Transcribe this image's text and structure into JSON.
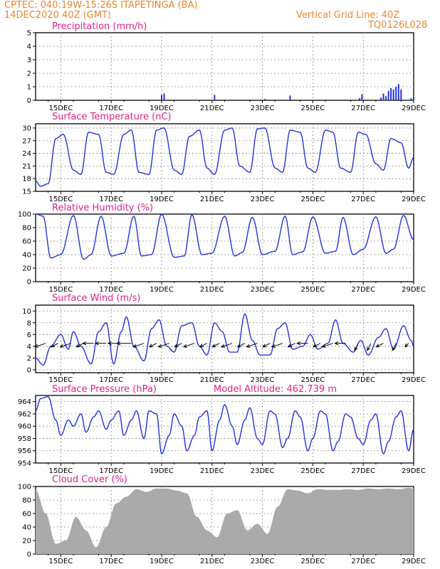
{
  "header": {
    "line1_left": "CPTEC:   040:19W-15:26S   ITAPETINGA (BA)",
    "line2_left": "14DEC2020 40Z (GMT)",
    "line2_right": "Vertical Grid Line: 40Z",
    "line3_right": "TQ0126L028"
  },
  "colors": {
    "header": "#e8862a",
    "title": "#e0208a",
    "line": "#2233dd",
    "cloud": "#aaaaaa",
    "arrow": "#000000"
  },
  "x_ticks": [
    "15DEC",
    "17DEC",
    "19DEC",
    "21DEC",
    "23DEC",
    "25DEC",
    "27DEC",
    "29DEC"
  ],
  "chart_data": [
    {
      "type": "bar",
      "title": "Precipitation (mm/h)",
      "ylim": [
        0,
        5
      ],
      "yticks": [
        0,
        1,
        2,
        3,
        4,
        5
      ],
      "x_range_days": [
        14,
        29
      ],
      "x": [
        19.0,
        19.1,
        21.1,
        23.1,
        24.1,
        26.85,
        26.95,
        27.7,
        27.8,
        27.9,
        28.0,
        28.1,
        28.2,
        28.3,
        28.4,
        28.5,
        28.9,
        29.0
      ],
      "values": [
        0.4,
        0.5,
        0.4,
        0.1,
        0.35,
        0.15,
        0.45,
        0.2,
        0.5,
        0.3,
        0.7,
        0.9,
        0.8,
        1.0,
        1.2,
        0.8,
        0.15,
        0.2
      ]
    },
    {
      "type": "line",
      "title": "Surface Temperature (nC)",
      "ylim": [
        15,
        31
      ],
      "yticks": [
        15,
        18,
        21,
        24,
        27,
        30
      ],
      "x": [
        14.0,
        14.2,
        14.5,
        14.8,
        15.1,
        15.5,
        15.8,
        16.1,
        16.5,
        16.8,
        17.1,
        17.5,
        17.8,
        18.1,
        18.5,
        18.8,
        19.1,
        19.5,
        19.8,
        20.1,
        20.5,
        20.8,
        21.1,
        21.5,
        21.8,
        22.1,
        22.5,
        22.8,
        23.1,
        23.5,
        23.8,
        24.1,
        24.5,
        24.8,
        25.1,
        25.5,
        25.8,
        26.1,
        26.5,
        26.8,
        27.1,
        27.5,
        27.8,
        28.1,
        28.5,
        28.8,
        29.0
      ],
      "values": [
        17.5,
        16.2,
        16.8,
        27.5,
        28.5,
        20.0,
        19.0,
        29.0,
        28.5,
        19.5,
        19.0,
        28.5,
        29.5,
        19.5,
        19.0,
        29.5,
        30.0,
        20.0,
        19.0,
        28.0,
        29.5,
        20.5,
        19.0,
        29.5,
        30.0,
        21.0,
        19.5,
        29.8,
        30.0,
        20.5,
        19.5,
        29.5,
        29.0,
        20.5,
        19.5,
        29.5,
        29.0,
        20.5,
        19.5,
        29.0,
        28.5,
        21.5,
        20.0,
        27.5,
        26.5,
        20.5,
        23.0
      ]
    },
    {
      "type": "line",
      "title": "Relative Humidity (%)",
      "ylim": [
        0,
        100
      ],
      "yticks": [
        0,
        20,
        40,
        60,
        80,
        100
      ],
      "x": [
        14.0,
        14.3,
        14.6,
        15.0,
        15.5,
        15.9,
        16.2,
        16.6,
        17.0,
        17.5,
        17.9,
        18.2,
        18.6,
        19.0,
        19.5,
        19.9,
        20.2,
        20.6,
        21.0,
        21.5,
        21.9,
        22.2,
        22.6,
        23.0,
        23.5,
        23.9,
        24.2,
        24.6,
        25.0,
        25.5,
        25.9,
        26.2,
        26.6,
        27.0,
        27.5,
        27.9,
        28.2,
        28.6,
        29.0
      ],
      "values": [
        100,
        97,
        35,
        40,
        98,
        33,
        40,
        97,
        38,
        42,
        97,
        38,
        40,
        100,
        36,
        38,
        99,
        40,
        42,
        97,
        38,
        43,
        95,
        40,
        45,
        97,
        40,
        44,
        96,
        42,
        45,
        95,
        40,
        48,
        96,
        42,
        48,
        98,
        62
      ]
    },
    {
      "type": "line",
      "title": "Surface Wind (m/s)",
      "ylim": [
        -0.5,
        11
      ],
      "yticks": [
        0,
        2,
        4,
        6,
        8,
        10
      ],
      "x": [
        14.0,
        14.3,
        14.6,
        15.0,
        15.3,
        15.5,
        15.8,
        16.2,
        16.5,
        16.8,
        17.1,
        17.4,
        17.6,
        17.9,
        18.3,
        18.6,
        18.9,
        19.2,
        19.5,
        19.8,
        20.2,
        20.5,
        20.8,
        21.1,
        21.4,
        21.7,
        22.0,
        22.3,
        22.6,
        22.9,
        23.3,
        23.6,
        23.9,
        24.2,
        24.6,
        24.9,
        25.2,
        25.6,
        25.9,
        26.2,
        26.6,
        26.9,
        27.2,
        27.6,
        27.9,
        28.2,
        28.6,
        28.9,
        29.0
      ],
      "values": [
        2.0,
        0.8,
        4.0,
        6.0,
        3.5,
        6.5,
        4.0,
        1.0,
        6.5,
        8.0,
        1.0,
        6.5,
        9.0,
        4.0,
        1.5,
        7.0,
        8.5,
        4.0,
        3.0,
        7.5,
        8.0,
        4.0,
        2.5,
        8.0,
        6.5,
        3.0,
        3.0,
        9.5,
        5.0,
        2.5,
        2.5,
        7.0,
        8.0,
        3.5,
        4.0,
        6.0,
        3.5,
        4.5,
        8.5,
        4.5,
        3.0,
        5.0,
        2.5,
        5.5,
        7.0,
        3.5,
        7.5,
        5.0,
        4.0
      ],
      "arrows": {
        "x": [
          14.4,
          14.9,
          15.4,
          15.9,
          16.3,
          16.8,
          17.3,
          17.8,
          18.3,
          18.8,
          19.3,
          19.8,
          20.3,
          20.8,
          21.3,
          21.8,
          22.3,
          22.8,
          23.3,
          23.8,
          24.3,
          24.8,
          25.3,
          25.8,
          26.3,
          26.8,
          27.3,
          27.8,
          28.3,
          28.8
        ],
        "u": [
          -3,
          -2,
          -3,
          -2,
          -3,
          -3,
          -3,
          -4,
          -3,
          -2,
          -3,
          -2,
          -3,
          -2,
          -2,
          -3,
          -2,
          -3,
          -2,
          -3,
          -2,
          -3,
          -2,
          -3,
          -3,
          -1,
          -1,
          -2,
          -1,
          -1
        ],
        "v": [
          -1,
          -1,
          -1,
          -1,
          0,
          0,
          0,
          0,
          -1,
          -1,
          -1,
          -1,
          -1,
          -1,
          -1,
          -1,
          -1,
          -1,
          -1,
          -1,
          -1,
          0,
          -1,
          -1,
          0,
          -2,
          -2,
          -1,
          -2,
          -1
        ]
      }
    },
    {
      "type": "line",
      "title": "Surface Pressure (hPa)",
      "annotation": "Model Altitude: 462.739  m",
      "ylim": [
        954,
        965
      ],
      "yticks": [
        954,
        956,
        958,
        960,
        962,
        964
      ],
      "x": [
        14.0,
        14.2,
        14.5,
        14.8,
        15.0,
        15.3,
        15.5,
        15.8,
        16.0,
        16.3,
        16.5,
        16.8,
        17.0,
        17.3,
        17.5,
        17.8,
        18.0,
        18.3,
        18.5,
        18.8,
        19.0,
        19.3,
        19.5,
        19.8,
        20.0,
        20.3,
        20.5,
        20.8,
        21.0,
        21.3,
        21.5,
        21.8,
        22.0,
        22.3,
        22.5,
        22.8,
        23.0,
        23.3,
        23.5,
        23.8,
        24.0,
        24.3,
        24.5,
        24.8,
        25.0,
        25.3,
        25.5,
        25.8,
        26.0,
        26.3,
        26.5,
        26.8,
        27.0,
        27.3,
        27.5,
        27.8,
        28.0,
        28.3,
        28.5,
        28.8,
        29.0
      ],
      "values": [
        962.5,
        964.5,
        964.8,
        961,
        958.5,
        961,
        960,
        962,
        959,
        961.5,
        962.5,
        959.5,
        961,
        962.5,
        958.5,
        961,
        962.5,
        958,
        962.5,
        962,
        955.5,
        958.5,
        962,
        960,
        956,
        958.5,
        961.5,
        962.5,
        956,
        961,
        963.5,
        960,
        957,
        961,
        963,
        958,
        957,
        962.5,
        962,
        956.5,
        958,
        962.5,
        961.5,
        956,
        958,
        962.5,
        962,
        956,
        957.5,
        962,
        961.5,
        958,
        957,
        961,
        962,
        955.5,
        957.5,
        961.5,
        962.5,
        956,
        959.5
      ]
    },
    {
      "type": "bar",
      "title": "Cloud Cover (%)",
      "ylim": [
        0,
        100
      ],
      "yticks": [
        0,
        20,
        40,
        60,
        80,
        100
      ],
      "x": [
        14.0,
        14.4,
        14.8,
        15.2,
        15.6,
        16.0,
        16.4,
        16.8,
        17.2,
        17.6,
        18.0,
        18.4,
        18.8,
        19.2,
        19.6,
        20.0,
        20.4,
        20.8,
        21.2,
        21.6,
        22.0,
        22.4,
        22.8,
        23.2,
        23.6,
        24.0,
        24.4,
        24.8,
        25.2,
        25.6,
        26.0,
        26.4,
        26.8,
        27.2,
        27.6,
        28.0,
        28.4,
        28.8,
        29.0
      ],
      "values": [
        95,
        60,
        15,
        20,
        55,
        35,
        10,
        40,
        75,
        85,
        96,
        92,
        97,
        97,
        94,
        90,
        55,
        35,
        25,
        60,
        65,
        35,
        45,
        30,
        70,
        96,
        94,
        90,
        96,
        95,
        95,
        96,
        95,
        97,
        96,
        97,
        96,
        98,
        97
      ]
    }
  ]
}
